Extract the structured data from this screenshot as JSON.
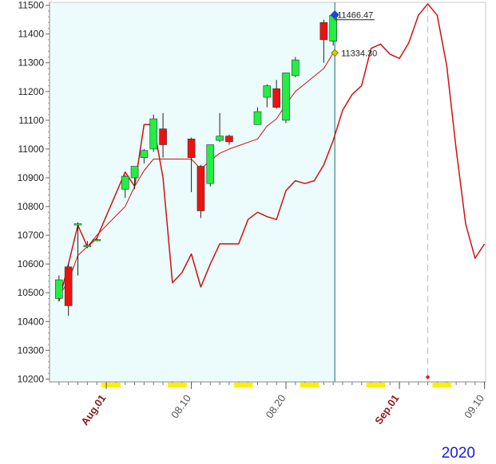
{
  "chart_data": {
    "type": "candlestick",
    "year_label": "2020",
    "ylim": [
      10190,
      11510
    ],
    "y_ticks": [
      10200,
      10300,
      10400,
      10500,
      10600,
      10700,
      10800,
      10900,
      11000,
      11100,
      11200,
      11300,
      11400,
      11500
    ],
    "x_start": "2020-07-27",
    "x_end": "2020-09-10",
    "x_labels": [
      {
        "date": "2020-08-01",
        "label": "Aug.01",
        "kind": "month"
      },
      {
        "date": "2020-08-10",
        "label": "08.10",
        "kind": "day"
      },
      {
        "date": "2020-08-20",
        "label": "08.20",
        "kind": "day"
      },
      {
        "date": "2020-09-01",
        "label": "Sep.01",
        "kind": "month"
      },
      {
        "date": "2020-09-10",
        "label": "09.10",
        "kind": "day"
      }
    ],
    "weekend_blocks": [
      [
        "2020-08-01",
        "2020-08-02"
      ],
      [
        "2020-08-08",
        "2020-08-09"
      ],
      [
        "2020-08-15",
        "2020-08-16"
      ],
      [
        "2020-08-22",
        "2020-08-23"
      ],
      [
        "2020-08-29",
        "2020-08-30"
      ],
      [
        "2020-09-05",
        "2020-09-06"
      ]
    ],
    "shaded_region": [
      "2020-07-27",
      "2020-08-25"
    ],
    "current_date": "2020-08-25",
    "forecast_marker_date": "2020-09-04",
    "candles": [
      {
        "date": "2020-07-27",
        "open": 10480,
        "high": 10560,
        "low": 10470,
        "close": 10545
      },
      {
        "date": "2020-07-28",
        "open": 10590,
        "high": 10600,
        "low": 10420,
        "close": 10455
      },
      {
        "date": "2020-07-29",
        "open": 10740,
        "high": 10745,
        "low": 10560,
        "close": 10740
      },
      {
        "date": "2020-07-30",
        "open": 10660,
        "high": 10680,
        "low": 10655,
        "close": 10665
      },
      {
        "date": "2020-07-31",
        "open": 10685,
        "high": 10690,
        "low": 10680,
        "close": 10685
      },
      {
        "date": "2020-08-03",
        "open": 10860,
        "high": 10910,
        "low": 10830,
        "close": 10905
      },
      {
        "date": "2020-08-04",
        "open": 10900,
        "high": 10940,
        "low": 10860,
        "close": 10940
      },
      {
        "date": "2020-08-05",
        "open": 10970,
        "high": 11000,
        "low": 10950,
        "close": 10995
      },
      {
        "date": "2020-08-06",
        "open": 11000,
        "high": 11120,
        "low": 10990,
        "close": 11105
      },
      {
        "date": "2020-08-07",
        "open": 11070,
        "high": 11125,
        "low": 10970,
        "close": 11015
      },
      {
        "date": "2020-08-10",
        "open": 11035,
        "high": 11040,
        "low": 10850,
        "close": 10970
      },
      {
        "date": "2020-08-11",
        "open": 10940,
        "high": 10945,
        "low": 10760,
        "close": 10785
      },
      {
        "date": "2020-08-12",
        "open": 10880,
        "high": 11015,
        "low": 10870,
        "close": 11015
      },
      {
        "date": "2020-08-13",
        "open": 11030,
        "high": 11125,
        "low": 11025,
        "close": 11045
      },
      {
        "date": "2020-08-14",
        "open": 11045,
        "high": 11050,
        "low": 11015,
        "close": 11025
      },
      {
        "date": "2020-08-17",
        "open": 11085,
        "high": 11145,
        "low": 11085,
        "close": 11130
      },
      {
        "date": "2020-08-18",
        "open": 11180,
        "high": 11225,
        "low": 11145,
        "close": 11220
      },
      {
        "date": "2020-08-19",
        "open": 11210,
        "high": 11240,
        "low": 11140,
        "close": 11145
      },
      {
        "date": "2020-08-20",
        "open": 11100,
        "high": 11265,
        "low": 11090,
        "close": 11265
      },
      {
        "date": "2020-08-21",
        "open": 11255,
        "high": 11320,
        "low": 11250,
        "close": 11310
      },
      {
        "date": "2020-08-24",
        "open": 11440,
        "high": 11450,
        "low": 11300,
        "close": 11380
      },
      {
        "date": "2020-08-25",
        "open": 11375,
        "high": 11470,
        "low": 11360,
        "close": 11465
      }
    ],
    "series": [
      {
        "color": "#d01010",
        "width": 1,
        "points": [
          [
            "2020-07-27",
            10490
          ],
          [
            "2020-07-28",
            10540
          ],
          [
            "2020-07-29",
            10630
          ],
          [
            "2020-07-30",
            10660
          ],
          [
            "2020-07-31",
            10700
          ],
          [
            "2020-08-03",
            10800
          ],
          [
            "2020-08-04",
            10870
          ],
          [
            "2020-08-05",
            10925
          ],
          [
            "2020-08-06",
            10965
          ],
          [
            "2020-08-07",
            10965
          ],
          [
            "2020-08-10",
            10965
          ],
          [
            "2020-08-11",
            10930
          ],
          [
            "2020-08-12",
            10960
          ],
          [
            "2020-08-13",
            10985
          ],
          [
            "2020-08-14",
            11000
          ],
          [
            "2020-08-17",
            11035
          ],
          [
            "2020-08-18",
            11080
          ],
          [
            "2020-08-19",
            11105
          ],
          [
            "2020-08-20",
            11155
          ],
          [
            "2020-08-21",
            11200
          ],
          [
            "2020-08-24",
            11280
          ],
          [
            "2020-08-25",
            11334.3
          ]
        ]
      },
      {
        "color": "#d01010",
        "width": 1.5,
        "points": [
          [
            "2020-07-27",
            10470
          ],
          [
            "2020-07-28",
            10600
          ],
          [
            "2020-07-29",
            10735
          ],
          [
            "2020-07-30",
            10660
          ],
          [
            "2020-07-31",
            10690
          ],
          [
            "2020-08-03",
            10920
          ],
          [
            "2020-08-04",
            10870
          ],
          [
            "2020-08-05",
            11085
          ],
          [
            "2020-08-06",
            11085
          ],
          [
            "2020-08-07",
            10900
          ],
          [
            "2020-08-08",
            10535
          ],
          [
            "2020-08-09",
            10570
          ],
          [
            "2020-08-10",
            10635
          ],
          [
            "2020-08-11",
            10520
          ],
          [
            "2020-08-12",
            10600
          ],
          [
            "2020-08-13",
            10670
          ],
          [
            "2020-08-14",
            10670
          ],
          [
            "2020-08-15",
            10670
          ],
          [
            "2020-08-16",
            10755
          ],
          [
            "2020-08-17",
            10780
          ],
          [
            "2020-08-18",
            10765
          ],
          [
            "2020-08-19",
            10755
          ],
          [
            "2020-08-20",
            10855
          ],
          [
            "2020-08-21",
            10890
          ],
          [
            "2020-08-22",
            10880
          ],
          [
            "2020-08-23",
            10890
          ],
          [
            "2020-08-24",
            10945
          ],
          [
            "2020-08-25",
            11030
          ],
          [
            "2020-08-26",
            11135
          ],
          [
            "2020-08-27",
            11190
          ],
          [
            "2020-08-28",
            11220
          ],
          [
            "2020-08-29",
            11350
          ],
          [
            "2020-08-30",
            11365
          ],
          [
            "2020-08-31",
            11330
          ],
          [
            "2020-09-01",
            11315
          ],
          [
            "2020-09-02",
            11370
          ],
          [
            "2020-09-03",
            11465
          ],
          [
            "2020-09-04",
            11505
          ],
          [
            "2020-09-05",
            11465
          ],
          [
            "2020-09-06",
            11290
          ],
          [
            "2020-09-07",
            11000
          ],
          [
            "2020-09-08",
            10740
          ],
          [
            "2020-09-09",
            10620
          ],
          [
            "2020-09-10",
            10670
          ]
        ]
      }
    ],
    "annotations": [
      {
        "date": "2020-08-25",
        "value": 11466.47,
        "text": "11466.47",
        "marker": "blue-diamond"
      },
      {
        "date": "2020-08-25",
        "value": 11334.3,
        "text": "11334.30",
        "marker": "gold-diamond"
      }
    ],
    "colors": {
      "up": "#22ee44",
      "down": "#ee1111",
      "shade": "#ecfbfb",
      "weekend": "#ffee00",
      "series": "#d01010",
      "current_line": "#1a6b6b",
      "forecast_line": "#bbbbbb"
    }
  }
}
